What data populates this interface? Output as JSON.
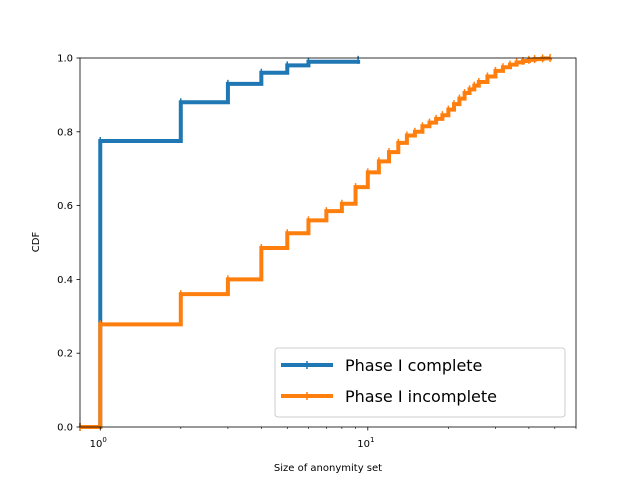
{
  "chart_data": {
    "type": "line",
    "xlabel": "Size of anonymity set",
    "ylabel": "CDF",
    "xscale": "log",
    "xlim": [
      0.84,
      60
    ],
    "ylim": [
      0,
      1
    ],
    "x_major_ticks": [
      {
        "value": 1,
        "base": "10",
        "exp": "0"
      },
      {
        "value": 10,
        "base": "10",
        "exp": "1"
      }
    ],
    "x_minor_ticks": [
      2,
      3,
      4,
      5,
      6,
      7,
      8,
      9,
      20,
      30,
      40,
      50,
      60
    ],
    "y_ticks": [
      {
        "value": 0.0,
        "label": "0.0"
      },
      {
        "value": 0.2,
        "label": "0.2"
      },
      {
        "value": 0.4,
        "label": "0.4"
      },
      {
        "value": 0.6,
        "label": "0.6"
      },
      {
        "value": 0.8,
        "label": "0.8"
      },
      {
        "value": 1.0,
        "label": "1.0"
      }
    ],
    "legend_position": "lower-right",
    "series": [
      {
        "name": "Phase I complete",
        "color": "#1f77b4",
        "x": [
          0.84,
          1,
          2,
          3,
          4,
          5,
          6,
          9.2
        ],
        "y": [
          0.0,
          0.775,
          0.88,
          0.93,
          0.96,
          0.98,
          0.99,
          0.995
        ]
      },
      {
        "name": "Phase I incomplete",
        "color": "#ff7f0e",
        "x": [
          0.84,
          1,
          2,
          3,
          4,
          5,
          6,
          7,
          8,
          9,
          10,
          11,
          12,
          13,
          14,
          15,
          16,
          17,
          18,
          19,
          20,
          21,
          22,
          23,
          24,
          25,
          26,
          28,
          30,
          32,
          34,
          36,
          38,
          40,
          42,
          45,
          48
        ],
        "y": [
          0.0,
          0.278,
          0.36,
          0.4,
          0.485,
          0.525,
          0.56,
          0.585,
          0.605,
          0.65,
          0.69,
          0.72,
          0.745,
          0.77,
          0.79,
          0.8,
          0.815,
          0.825,
          0.835,
          0.845,
          0.86,
          0.875,
          0.89,
          0.905,
          0.915,
          0.925,
          0.935,
          0.95,
          0.965,
          0.975,
          0.982,
          0.988,
          0.992,
          0.995,
          0.997,
          0.999,
          1.0
        ]
      }
    ]
  }
}
